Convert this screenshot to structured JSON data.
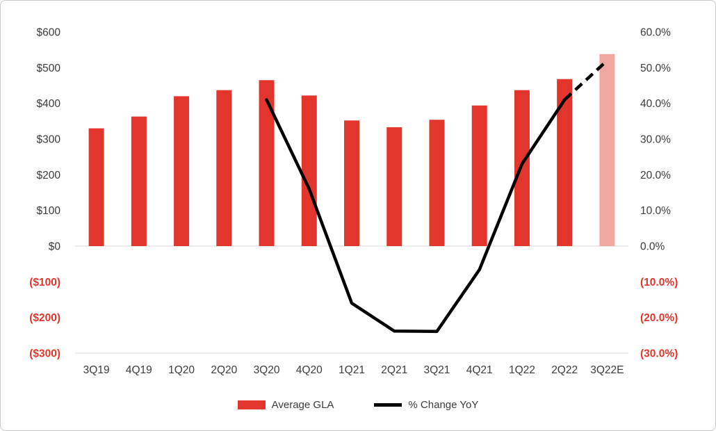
{
  "chart_data": {
    "type": "combo",
    "title": "",
    "categories": [
      "3Q19",
      "4Q19",
      "1Q20",
      "2Q20",
      "3Q20",
      "4Q20",
      "1Q21",
      "2Q21",
      "3Q21",
      "4Q21",
      "1Q22",
      "2Q22",
      "3Q22E"
    ],
    "series": [
      {
        "name": "Average GLA",
        "type": "bar",
        "axis": "left",
        "values": [
          330,
          363,
          420,
          437,
          465,
          422,
          352,
          333,
          354,
          394,
          437,
          468,
          538
        ],
        "color": "#e2352b",
        "last_bar_color": "#f2a6a0",
        "last_bar_estimated": true
      },
      {
        "name": "% Change YoY",
        "type": "line",
        "axis": "right",
        "values": [
          null,
          null,
          null,
          null,
          41,
          16,
          -16,
          -23.8,
          -23.9,
          -6.6,
          23,
          41,
          52
        ],
        "color": "#000000",
        "dashed_from_index": 11
      }
    ],
    "left_axis": {
      "min": -300,
      "max": 600,
      "step": 100,
      "tick_labels": [
        "$600",
        "$500",
        "$400",
        "$300",
        "$200",
        "$100",
        "$0",
        "($100)",
        "($200)",
        "($300)"
      ]
    },
    "right_axis": {
      "min": -30,
      "max": 60,
      "step": 10,
      "tick_labels": [
        "60.0%",
        "50.0%",
        "40.0%",
        "30.0%",
        "20.0%",
        "10.0%",
        "0.0%",
        "(10.0%)",
        "(20.0%)",
        "(30.0%)"
      ]
    },
    "positive_label_color": "#3b3b3b",
    "negative_label_color": "#e2352b",
    "gridline_color": "#d9d9d9",
    "legend": [
      {
        "label": "Average GLA",
        "swatch": "bar",
        "color": "#e2352b"
      },
      {
        "label": "% Change YoY",
        "swatch": "line",
        "color": "#000000"
      }
    ]
  }
}
